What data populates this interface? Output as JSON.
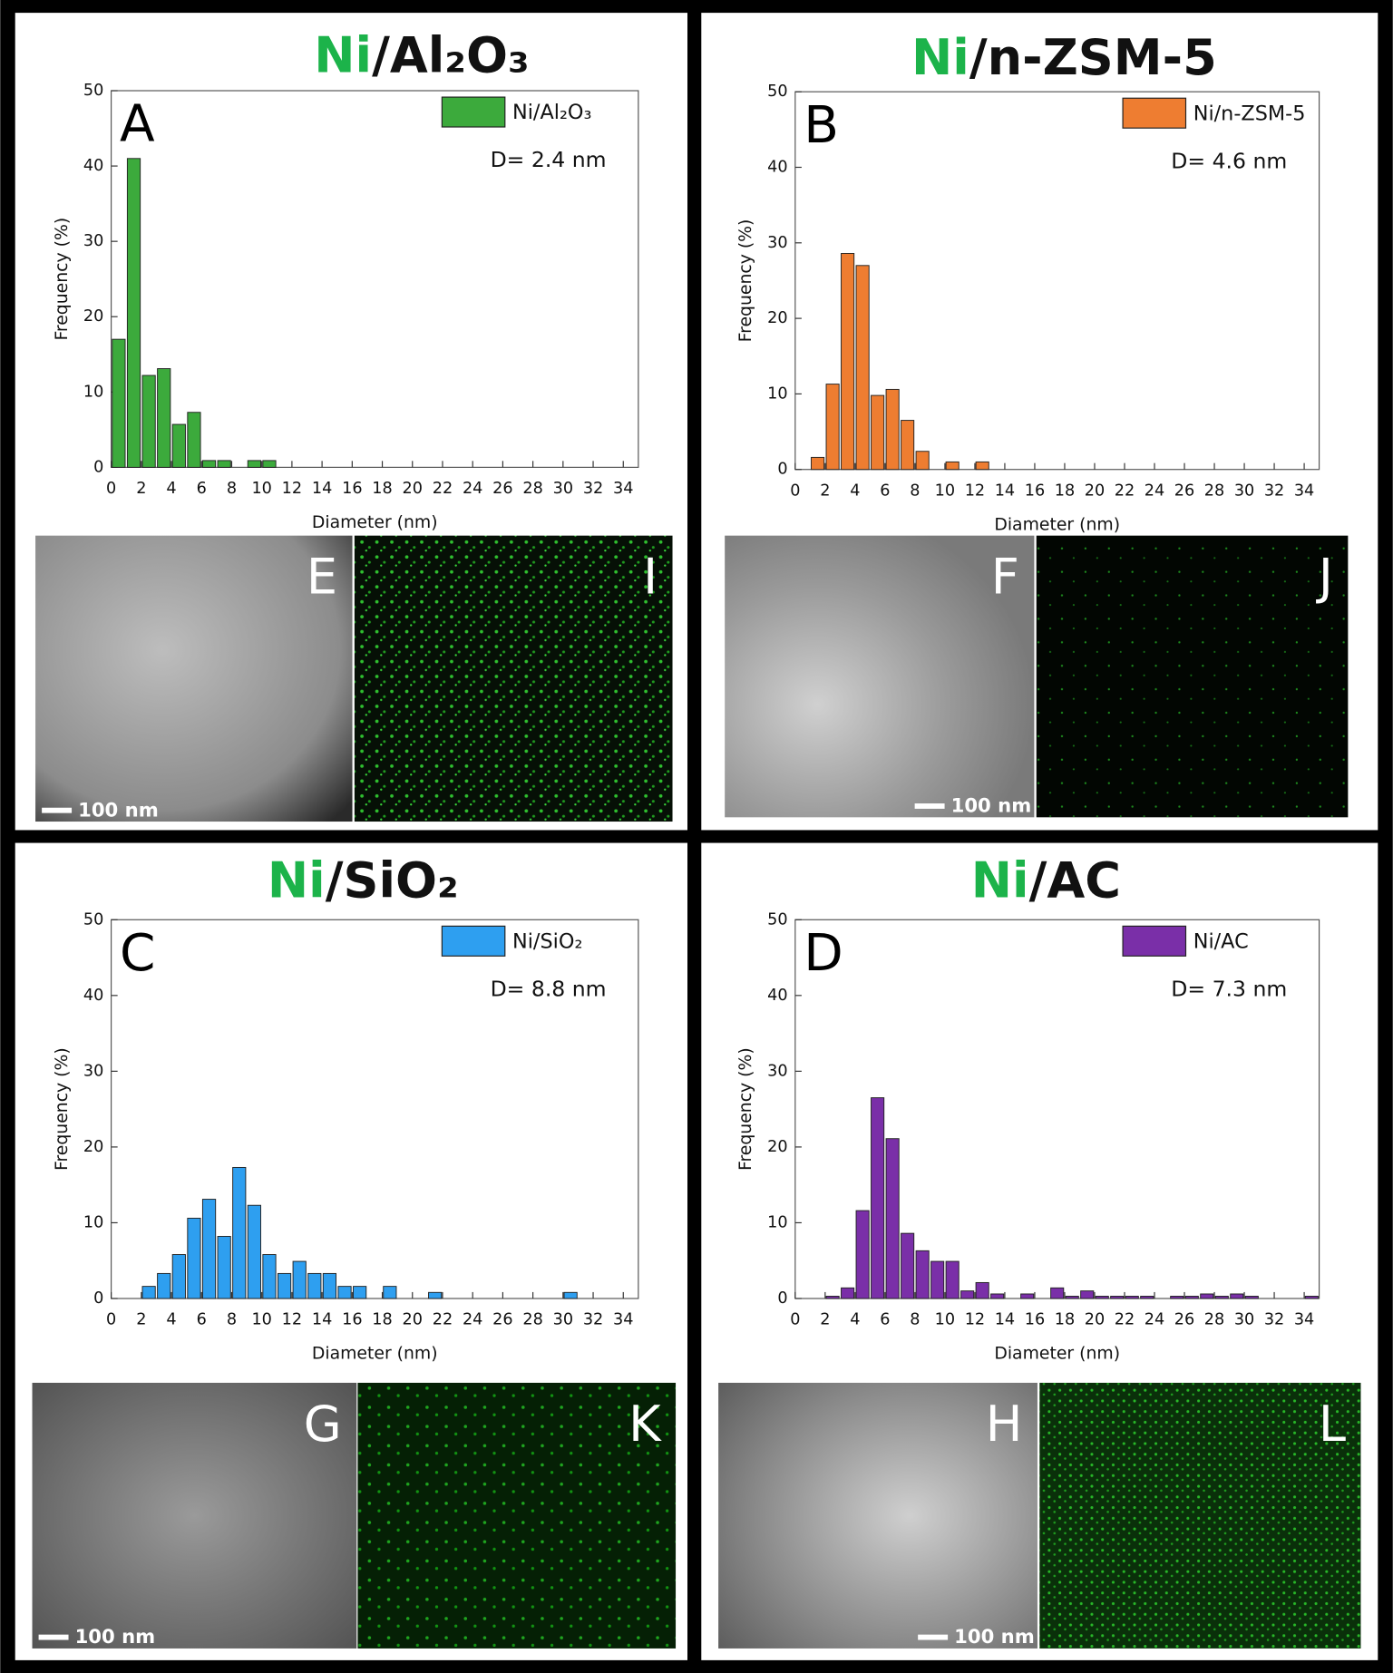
{
  "chart_data": [
    {
      "type": "histogram",
      "title_parts": [
        "Ni",
        "/Al₂O₃"
      ],
      "title_colors": [
        "#1cb34a",
        "#111111"
      ],
      "panel_label": "A",
      "series": [
        {
          "name": "Ni/Al₂O₃",
          "color": "#3caa3c"
        }
      ],
      "annotation": "D= 2.4 nm",
      "x_label": "Diameter (nm)",
      "y_label": "Frequency (%)",
      "bins": [
        0,
        1,
        2,
        3,
        4,
        5,
        6,
        7,
        8,
        9,
        10,
        11
      ],
      "counts": [
        17,
        41,
        12.2,
        13.1,
        5.7,
        7.3,
        0.9,
        0.9,
        0,
        0.9,
        0.9
      ],
      "xlim": [
        0,
        35
      ],
      "xticks": [
        0,
        2,
        4,
        6,
        8,
        10,
        12,
        14,
        16,
        18,
        20,
        22,
        24,
        26,
        28,
        30,
        32,
        34
      ],
      "ylim": [
        0,
        50
      ],
      "yticks": [
        0,
        10,
        20,
        30,
        40,
        50
      ],
      "image_labels": [
        "E",
        "I"
      ],
      "scale_bar": "100 nm"
    },
    {
      "type": "histogram",
      "title_parts": [
        "Ni",
        "/n-ZSM-5"
      ],
      "title_colors": [
        "#1cb34a",
        "#111111"
      ],
      "panel_label": "B",
      "series": [
        {
          "name": "Ni/n-ZSM-5",
          "color": "#ee7d31"
        }
      ],
      "annotation": "D= 4.6 nm",
      "x_label": "Diameter (nm)",
      "y_label": "Frequency (%)",
      "bins": [
        1,
        2,
        3,
        4,
        5,
        6,
        7,
        8,
        9,
        10,
        11,
        12,
        13
      ],
      "counts": [
        1.6,
        11.3,
        28.6,
        27,
        9.8,
        10.6,
        6.5,
        2.4,
        0,
        1,
        0,
        1
      ],
      "xlim": [
        0,
        35
      ],
      "xticks": [
        0,
        2,
        4,
        6,
        8,
        10,
        12,
        14,
        16,
        18,
        20,
        22,
        24,
        26,
        28,
        30,
        32,
        34
      ],
      "ylim": [
        0,
        50
      ],
      "yticks": [
        0,
        10,
        20,
        30,
        40,
        50
      ],
      "image_labels": [
        "F",
        "J"
      ],
      "scale_bar": "100 nm"
    },
    {
      "type": "histogram",
      "title_parts": [
        "Ni",
        "/SiO₂"
      ],
      "title_colors": [
        "#1cb34a",
        "#111111"
      ],
      "panel_label": "C",
      "series": [
        {
          "name": "Ni/SiO₂",
          "color": "#2e9ff0"
        }
      ],
      "annotation": "D= 8.8 nm",
      "x_label": "Diameter (nm)",
      "y_label": "Frequency (%)",
      "bins": [
        2,
        3,
        4,
        5,
        6,
        7,
        8,
        9,
        10,
        11,
        12,
        13,
        14,
        15,
        16,
        17,
        18,
        19,
        20,
        21,
        22,
        23,
        24,
        25,
        26,
        27,
        28,
        29,
        30,
        31
      ],
      "counts": [
        1.6,
        3.3,
        5.8,
        10.6,
        13.1,
        8.2,
        17.3,
        12.3,
        5.8,
        3.3,
        4.9,
        3.3,
        3.3,
        1.6,
        1.6,
        0,
        1.6,
        0,
        0,
        0.8,
        0,
        0,
        0,
        0,
        0,
        0,
        0,
        0,
        0.8
      ],
      "xlim": [
        0,
        35
      ],
      "xticks": [
        0,
        2,
        4,
        6,
        8,
        10,
        12,
        14,
        16,
        18,
        20,
        22,
        24,
        26,
        28,
        30,
        32,
        34
      ],
      "ylim": [
        0,
        50
      ],
      "yticks": [
        0,
        10,
        20,
        30,
        40,
        50
      ],
      "image_labels": [
        "G",
        "K"
      ],
      "scale_bar": "100 nm"
    },
    {
      "type": "histogram",
      "title_parts": [
        "Ni",
        "/AC"
      ],
      "title_colors": [
        "#1cb34a",
        "#111111"
      ],
      "panel_label": "D",
      "series": [
        {
          "name": "Ni/AC",
          "color": "#7a2fa8"
        }
      ],
      "annotation": "D= 7.3 nm",
      "x_label": "Diameter (nm)",
      "y_label": "Frequency (%)",
      "bins": [
        2,
        3,
        4,
        5,
        6,
        7,
        8,
        9,
        10,
        11,
        12,
        13,
        14,
        15,
        16,
        17,
        18,
        19,
        20,
        21,
        22,
        23,
        24,
        25,
        26,
        27,
        28,
        29,
        30,
        31,
        32,
        33,
        34,
        35
      ],
      "counts": [
        0.3,
        1.4,
        11.6,
        26.5,
        21.1,
        8.6,
        6.3,
        4.9,
        4.9,
        1,
        2.1,
        0.6,
        0,
        0.6,
        0,
        1.4,
        0.3,
        1,
        0.3,
        0.3,
        0.3,
        0.3,
        0,
        0.3,
        0.3,
        0.6,
        0.3,
        0.6,
        0.3,
        0,
        0,
        0,
        0.3
      ],
      "xlim": [
        0,
        35
      ],
      "xticks": [
        0,
        2,
        4,
        6,
        8,
        10,
        12,
        14,
        16,
        18,
        20,
        22,
        24,
        26,
        28,
        30,
        32,
        34
      ],
      "ylim": [
        0,
        50
      ],
      "yticks": [
        0,
        10,
        20,
        30,
        40,
        50
      ],
      "image_labels": [
        "H",
        "L"
      ],
      "scale_bar": "100 nm"
    }
  ]
}
